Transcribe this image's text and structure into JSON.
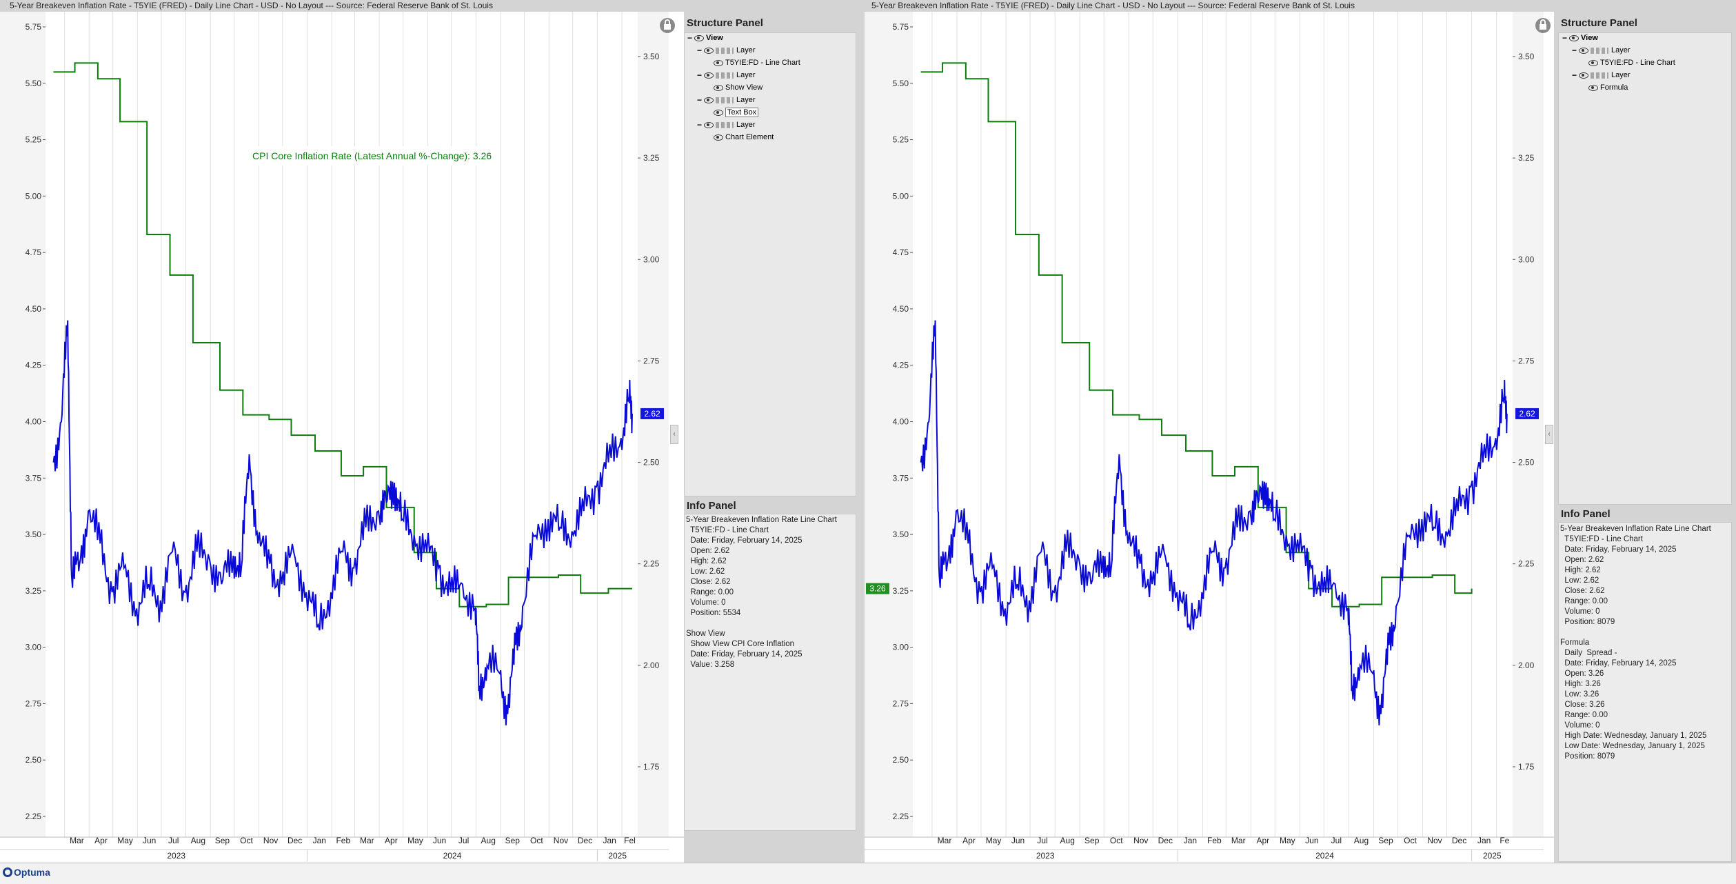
{
  "left": {
    "title": "5-Year Breakeven Inflation Rate - T5YIE (FRED) - Daily Line Chart - USD - No Layout --- Source: Federal Reserve Bank of St. Louis",
    "structure": {
      "header": "Structure Panel",
      "rows": [
        {
          "exp": "−",
          "label": "View",
          "bold": true,
          "tools": false,
          "indent": 0
        },
        {
          "exp": "−",
          "label": "Layer",
          "bold": false,
          "tools": true,
          "indent": 1
        },
        {
          "exp": "",
          "label": "T5YIE:FD - Line Chart",
          "bold": false,
          "tools": false,
          "indent": 2
        },
        {
          "exp": "−",
          "label": "Layer",
          "bold": false,
          "tools": true,
          "indent": 1
        },
        {
          "exp": "",
          "label": "Show View",
          "bold": false,
          "tools": false,
          "indent": 2
        },
        {
          "exp": "−",
          "label": "Layer",
          "bold": false,
          "tools": true,
          "indent": 1
        },
        {
          "exp": "",
          "label": "Text Box",
          "bold": false,
          "tools": false,
          "indent": 2,
          "boxed": true
        },
        {
          "exp": "−",
          "label": "Layer",
          "bold": false,
          "tools": true,
          "indent": 1
        },
        {
          "exp": "",
          "label": "Chart Element",
          "bold": false,
          "tools": false,
          "indent": 2
        }
      ]
    },
    "info": {
      "header": "Info Panel",
      "lines": [
        "5-Year Breakeven Inflation Rate Line Chart",
        "  T5YIE:FD - Line Chart",
        "  Date: Friday, February 14, 2025",
        "  Open: 2.62",
        "  High: 2.62",
        "  Low: 2.62",
        "  Close: 2.62",
        "  Range: 0.00",
        "  Volume: 0",
        "  Position: 5534",
        "",
        "Show View",
        "  Show View CPI Core Inflation",
        "  Date: Friday, February 14, 2025",
        "  Value: 3.258"
      ]
    },
    "annotation": "CPI Core Inflation Rate (Latest Annual %-Change): 3.26",
    "price_badge": "2.62"
  },
  "right": {
    "title": "5-Year Breakeven Inflation Rate - T5YIE (FRED) - Daily Line Chart - USD - No Layout --- Source: Federal Reserve Bank of St. Louis",
    "structure": {
      "header": "Structure Panel",
      "rows": [
        {
          "exp": "−",
          "label": "View",
          "bold": true,
          "tools": false,
          "indent": 0
        },
        {
          "exp": "−",
          "label": "Layer",
          "bold": false,
          "tools": true,
          "indent": 1
        },
        {
          "exp": "",
          "label": "T5YIE:FD - Line Chart",
          "bold": false,
          "tools": false,
          "indent": 2
        },
        {
          "exp": "−",
          "label": "Layer",
          "bold": false,
          "tools": true,
          "indent": 1
        },
        {
          "exp": "",
          "label": "Formula",
          "bold": false,
          "tools": false,
          "indent": 2
        }
      ]
    },
    "info": {
      "header": "Info Panel",
      "lines": [
        "5-Year Breakeven Inflation Rate Line Chart",
        "  T5YIE:FD - Line Chart",
        "  Date: Friday, February 14, 2025",
        "  Open: 2.62",
        "  High: 2.62",
        "  Low: 2.62",
        "  Close: 2.62",
        "  Range: 0.00",
        "  Volume: 0",
        "  Position: 8079",
        "",
        "Formula",
        "  Daily  Spread -",
        "  Date: Friday, February 14, 2025",
        "  Open: 3.26",
        "  High: 3.26",
        "  Low: 3.26",
        "  Close: 3.26",
        "  Range: 0.00",
        "  Volume: 0",
        "  High Date: Wednesday, January 1, 2025",
        "  Low Date: Wednesday, January 1, 2025",
        "  Position: 8079"
      ]
    },
    "price_badge": "2.62",
    "spread_badge": "3.26"
  },
  "colors": {
    "breakeven": "#0a0ad8",
    "cpi": "#0a7d0a",
    "badge_blue": "#1515e0",
    "badge_green": "#1f8f1f"
  },
  "logo_text": "Optuma",
  "chart_data": [
    {
      "type": "line",
      "left_axis": {
        "ticks": [
          "5.75",
          "5.50",
          "5.25",
          "5.00",
          "4.75",
          "4.50",
          "4.25",
          "4.00",
          "3.75",
          "3.50",
          "3.25",
          "3.00",
          "2.75",
          "2.50",
          "2.25"
        ],
        "ylim": [
          2.2,
          5.8
        ]
      },
      "right_axis": {
        "ticks": [
          "3.50",
          "3.25",
          "3.00",
          "2.75",
          "2.50",
          "2.25",
          "2.00",
          "1.75"
        ],
        "ylim": [
          1.6,
          3.62
        ]
      },
      "months": [
        "Mar",
        "Apr",
        "May",
        "Jun",
        "Jul",
        "Aug",
        "Sep",
        "Oct",
        "Nov",
        "Dec",
        "Jan",
        "Feb",
        "Mar",
        "Apr",
        "May",
        "Jun",
        "Jul",
        "Aug",
        "Sep",
        "Oct",
        "Nov",
        "Dec",
        "Jan",
        "Fel"
      ],
      "years": [
        "2023",
        "2024",
        "2025"
      ],
      "series": [
        {
          "name": "T5YIE:FD",
          "axis": "right",
          "x": [
            "2023-02-15",
            "2023-02-25",
            "2023-03-05",
            "2023-03-10",
            "2023-03-20",
            "2023-03-31",
            "2023-04-15",
            "2023-04-30",
            "2023-05-15",
            "2023-05-31",
            "2023-06-15",
            "2023-06-30",
            "2023-07-15",
            "2023-07-31",
            "2023-08-15",
            "2023-08-31",
            "2023-09-15",
            "2023-09-30",
            "2023-10-10",
            "2023-10-20",
            "2023-10-31",
            "2023-11-15",
            "2023-11-30",
            "2023-12-15",
            "2023-12-31",
            "2024-01-15",
            "2024-01-31",
            "2024-02-15",
            "2024-02-29",
            "2024-03-15",
            "2024-03-31",
            "2024-04-10",
            "2024-04-20",
            "2024-04-30",
            "2024-05-15",
            "2024-05-31",
            "2024-06-15",
            "2024-06-30",
            "2024-07-15",
            "2024-07-31",
            "2024-08-05",
            "2024-08-15",
            "2024-08-31",
            "2024-09-10",
            "2024-09-20",
            "2024-09-30",
            "2024-10-15",
            "2024-10-31",
            "2024-11-15",
            "2024-11-30",
            "2024-12-15",
            "2024-12-31",
            "2025-01-15",
            "2025-01-31",
            "2025-02-10",
            "2025-02-14"
          ],
          "y": [
            2.5,
            2.6,
            2.85,
            2.22,
            2.25,
            2.38,
            2.3,
            2.18,
            2.24,
            2.14,
            2.2,
            2.16,
            2.28,
            2.18,
            2.28,
            2.26,
            2.2,
            2.27,
            2.24,
            2.52,
            2.3,
            2.25,
            2.2,
            2.28,
            2.18,
            2.1,
            2.18,
            2.28,
            2.24,
            2.34,
            2.38,
            2.4,
            2.45,
            2.36,
            2.32,
            2.28,
            2.24,
            2.18,
            2.2,
            2.14,
            1.95,
            2.0,
            1.98,
            1.88,
            2.05,
            2.15,
            2.32,
            2.36,
            2.34,
            2.33,
            2.38,
            2.44,
            2.5,
            2.56,
            2.66,
            2.62
          ]
        },
        {
          "name": "CPI Core Inflation",
          "axis": "left",
          "x": [
            "2023-02-15",
            "2023-03-14",
            "2023-04-12",
            "2023-05-10",
            "2023-06-13",
            "2023-07-12",
            "2023-08-10",
            "2023-09-13",
            "2023-10-12",
            "2023-11-14",
            "2023-12-12",
            "2024-01-11",
            "2024-02-13",
            "2024-03-12",
            "2024-04-10",
            "2024-05-15",
            "2024-06-12",
            "2024-07-11",
            "2024-08-14",
            "2024-09-11",
            "2024-10-10",
            "2024-11-13",
            "2024-12-11",
            "2025-01-15",
            "2025-02-14"
          ],
          "y": [
            5.55,
            5.59,
            5.52,
            5.33,
            4.83,
            4.65,
            4.35,
            4.14,
            4.03,
            4.01,
            3.94,
            3.87,
            3.76,
            3.8,
            3.62,
            3.42,
            3.26,
            3.18,
            3.19,
            3.31,
            3.31,
            3.32,
            3.24,
            3.26,
            3.26
          ]
        }
      ]
    },
    {
      "type": "line",
      "left_axis": {
        "ticks": [
          "5.75",
          "5.50",
          "5.25",
          "5.00",
          "4.75",
          "4.50",
          "4.25",
          "4.00",
          "3.75",
          "3.50",
          "3.25",
          "3.00",
          "2.75",
          "2.50",
          "2.25"
        ],
        "ylim": [
          2.2,
          5.8
        ]
      },
      "right_axis": {
        "ticks": [
          "3.50",
          "3.25",
          "3.00",
          "2.75",
          "2.50",
          "2.25",
          "2.00",
          "1.75"
        ],
        "ylim": [
          1.6,
          3.62
        ]
      },
      "months": [
        "Mar",
        "Apr",
        "May",
        "Jun",
        "Jul",
        "Aug",
        "Sep",
        "Oct",
        "Nov",
        "Dec",
        "Jan",
        "Feb",
        "Mar",
        "Apr",
        "May",
        "Jun",
        "Jul",
        "Aug",
        "Sep",
        "Oct",
        "Nov",
        "Dec",
        "Jan",
        "Fe"
      ],
      "years": [
        "2023",
        "2024",
        "2025"
      ],
      "series": [
        {
          "name": "T5YIE:FD",
          "axis": "right",
          "x": [
            "2023-02-15",
            "2023-02-25",
            "2023-03-05",
            "2023-03-10",
            "2023-03-20",
            "2023-03-31",
            "2023-04-15",
            "2023-04-30",
            "2023-05-15",
            "2023-05-31",
            "2023-06-15",
            "2023-06-30",
            "2023-07-15",
            "2023-07-31",
            "2023-08-15",
            "2023-08-31",
            "2023-09-15",
            "2023-09-30",
            "2023-10-10",
            "2023-10-20",
            "2023-10-31",
            "2023-11-15",
            "2023-11-30",
            "2023-12-15",
            "2023-12-31",
            "2024-01-15",
            "2024-01-31",
            "2024-02-15",
            "2024-02-29",
            "2024-03-15",
            "2024-03-31",
            "2024-04-10",
            "2024-04-20",
            "2024-04-30",
            "2024-05-15",
            "2024-05-31",
            "2024-06-15",
            "2024-06-30",
            "2024-07-15",
            "2024-07-31",
            "2024-08-05",
            "2024-08-15",
            "2024-08-31",
            "2024-09-10",
            "2024-09-20",
            "2024-09-30",
            "2024-10-15",
            "2024-10-31",
            "2024-11-15",
            "2024-11-30",
            "2024-12-15",
            "2024-12-31",
            "2025-01-15",
            "2025-01-31",
            "2025-02-10",
            "2025-02-14"
          ],
          "y": [
            2.5,
            2.6,
            2.85,
            2.22,
            2.25,
            2.38,
            2.3,
            2.18,
            2.24,
            2.14,
            2.2,
            2.16,
            2.28,
            2.18,
            2.28,
            2.26,
            2.2,
            2.27,
            2.24,
            2.52,
            2.3,
            2.25,
            2.2,
            2.28,
            2.18,
            2.1,
            2.18,
            2.28,
            2.24,
            2.34,
            2.38,
            2.4,
            2.45,
            2.36,
            2.32,
            2.28,
            2.24,
            2.18,
            2.2,
            2.14,
            1.95,
            2.0,
            1.98,
            1.88,
            2.05,
            2.15,
            2.32,
            2.36,
            2.34,
            2.33,
            2.38,
            2.44,
            2.5,
            2.56,
            2.66,
            2.62
          ]
        },
        {
          "name": "Formula",
          "axis": "left",
          "x": [
            "2023-02-15",
            "2023-03-14",
            "2023-04-12",
            "2023-05-10",
            "2023-06-13",
            "2023-07-12",
            "2023-08-10",
            "2023-09-13",
            "2023-10-12",
            "2023-11-14",
            "2023-12-12",
            "2024-01-11",
            "2024-02-13",
            "2024-03-12",
            "2024-04-10",
            "2024-05-15",
            "2024-06-12",
            "2024-07-11",
            "2024-08-14",
            "2024-09-11",
            "2024-10-10",
            "2024-11-13",
            "2024-12-11",
            "2025-01-01"
          ],
          "y": [
            5.55,
            5.59,
            5.52,
            5.33,
            4.83,
            4.65,
            4.35,
            4.14,
            4.03,
            4.01,
            3.94,
            3.87,
            3.76,
            3.8,
            3.62,
            3.42,
            3.26,
            3.18,
            3.19,
            3.31,
            3.31,
            3.32,
            3.24,
            3.26
          ]
        }
      ]
    }
  ]
}
